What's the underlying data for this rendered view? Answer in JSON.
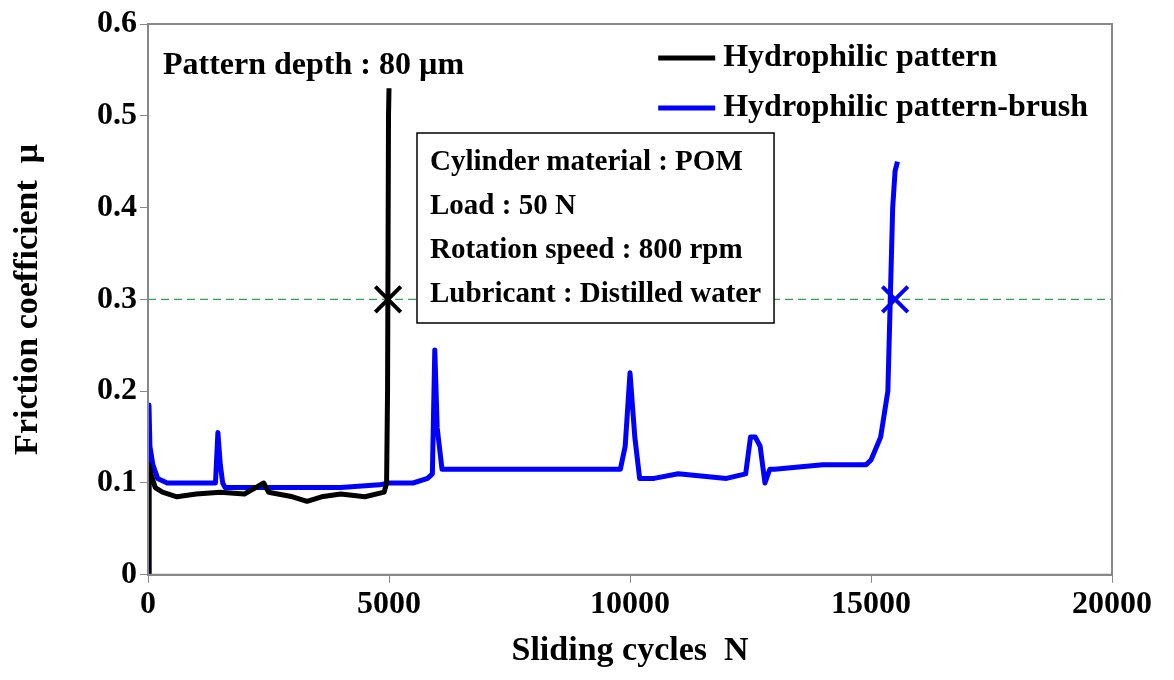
{
  "chart_data": {
    "type": "line",
    "xlabel": "Sliding cycles  N",
    "ylabel": "Friction coefficient  μ",
    "xlim": [
      0,
      20000
    ],
    "xticks": [
      0,
      5000,
      10000,
      15000,
      20000
    ],
    "ylim": [
      0,
      0.6
    ],
    "yticks": [
      0,
      0.1,
      0.2,
      0.3,
      0.4,
      0.5,
      0.6
    ],
    "grid": false,
    "legend": "top right",
    "marker": "none",
    "line_style": "solid",
    "series": [
      {
        "name": "Hydrophilic pattern",
        "color": "#000000",
        "x": [
          0,
          20,
          60,
          150,
          300,
          600,
          1000,
          1500,
          2000,
          2400,
          2500,
          3000,
          3300,
          3600,
          4000,
          4500,
          4900,
          4950,
          4970,
          4990,
          5000
        ],
        "values": [
          0,
          0.12,
          0.11,
          0.095,
          0.09,
          0.085,
          0.088,
          0.09,
          0.088,
          0.1,
          0.09,
          0.085,
          0.08,
          0.085,
          0.088,
          0.085,
          0.09,
          0.1,
          0.2,
          0.5,
          0.53
        ]
      },
      {
        "name": "Hydrophilic pattern-brush",
        "color": "#0000ff",
        "x": [
          0,
          20,
          40,
          100,
          200,
          400,
          800,
          1400,
          1450,
          1500,
          1550,
          1600,
          2000,
          3000,
          4000,
          4800,
          5000,
          5500,
          5800,
          5900,
          5950,
          6000,
          6100,
          6500,
          7000,
          8000,
          9000,
          9800,
          9900,
          10000,
          10100,
          10200,
          10500,
          11000,
          12000,
          12400,
          12500,
          12600,
          12700,
          12800,
          12900,
          13000,
          14000,
          14900,
          15000,
          15200,
          15350,
          15400,
          15450,
          15500,
          15550
        ],
        "values": [
          0,
          0.185,
          0.14,
          0.12,
          0.105,
          0.1,
          0.1,
          0.1,
          0.155,
          0.12,
          0.1,
          0.095,
          0.095,
          0.095,
          0.095,
          0.098,
          0.1,
          0.1,
          0.105,
          0.11,
          0.245,
          0.16,
          0.115,
          0.115,
          0.115,
          0.115,
          0.115,
          0.115,
          0.14,
          0.22,
          0.15,
          0.105,
          0.105,
          0.11,
          0.105,
          0.11,
          0.15,
          0.15,
          0.14,
          0.1,
          0.115,
          0.115,
          0.12,
          0.12,
          0.125,
          0.15,
          0.2,
          0.3,
          0.4,
          0.44,
          0.45
        ]
      },
      {
        "type": "scatter",
        "color": "#000000",
        "marker": "cross",
        "x": [
          4980
        ],
        "values": [
          0.3
        ]
      },
      {
        "type": "scatter",
        "color": "#0000ff",
        "marker": "cross",
        "x": [
          15500
        ],
        "values": [
          0.3
        ]
      }
    ],
    "ref_lines": [
      {
        "axis": "y",
        "value": 0.3,
        "color": "#2ea44f",
        "line_style": "dashed"
      }
    ],
    "annotations": [
      "Pattern depth : 80 µm",
      "Cylinder material : POM",
      "Load : 50 N",
      "Rotation speed : 800 rpm",
      "Lubricant : Distilled water"
    ]
  }
}
